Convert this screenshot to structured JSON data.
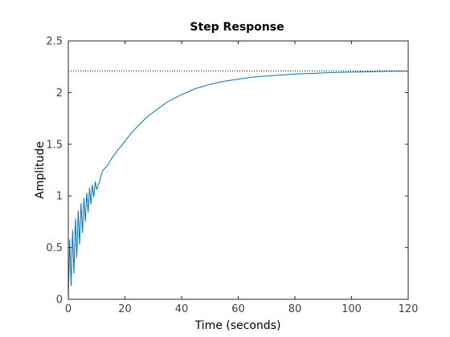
{
  "chart_data": {
    "type": "line",
    "title": "Step Response",
    "xlabel": "Time (seconds)",
    "ylabel": "Amplitude",
    "xlim": [
      0,
      120
    ],
    "ylim": [
      0,
      2.5
    ],
    "xticks": [
      0,
      20,
      40,
      60,
      80,
      100,
      120
    ],
    "xtick_labels": [
      "0",
      "20",
      "40",
      "60",
      "80",
      "100",
      "120"
    ],
    "yticks": [
      0,
      0.5,
      1,
      1.5,
      2,
      2.5
    ],
    "ytick_labels": [
      "0",
      "0.5",
      "1",
      "1.5",
      "2",
      "2.5"
    ],
    "grid": false,
    "steady_state": {
      "value": 2.21,
      "style": "dotted"
    },
    "series": [
      {
        "color": "#0072BD",
        "x": [
          0,
          0.5,
          1,
          1.5,
          2,
          2.5,
          3,
          3.5,
          4,
          4.5,
          5,
          5.5,
          6,
          6.5,
          7,
          7.5,
          8,
          8.5,
          9,
          9.5,
          10,
          11,
          12,
          13,
          14,
          15,
          16,
          18,
          20,
          22,
          25,
          28,
          30,
          35,
          40,
          45,
          50,
          55,
          60,
          65,
          70,
          75,
          80,
          85,
          90,
          95,
          100,
          105,
          110,
          115,
          120
        ],
        "y": [
          0,
          0.58,
          0.13,
          0.67,
          0.25,
          0.78,
          0.4,
          0.86,
          0.53,
          0.93,
          0.64,
          0.98,
          0.75,
          1.03,
          0.84,
          1.08,
          0.92,
          1.11,
          0.99,
          1.14,
          1.06,
          1.14,
          1.24,
          1.27,
          1.3,
          1.35,
          1.39,
          1.46,
          1.53,
          1.6,
          1.69,
          1.77,
          1.81,
          1.91,
          1.98,
          2.04,
          2.08,
          2.11,
          2.13,
          2.15,
          2.16,
          2.17,
          2.18,
          2.185,
          2.19,
          2.195,
          2.198,
          2.2,
          2.205,
          2.207,
          2.208
        ]
      }
    ]
  }
}
